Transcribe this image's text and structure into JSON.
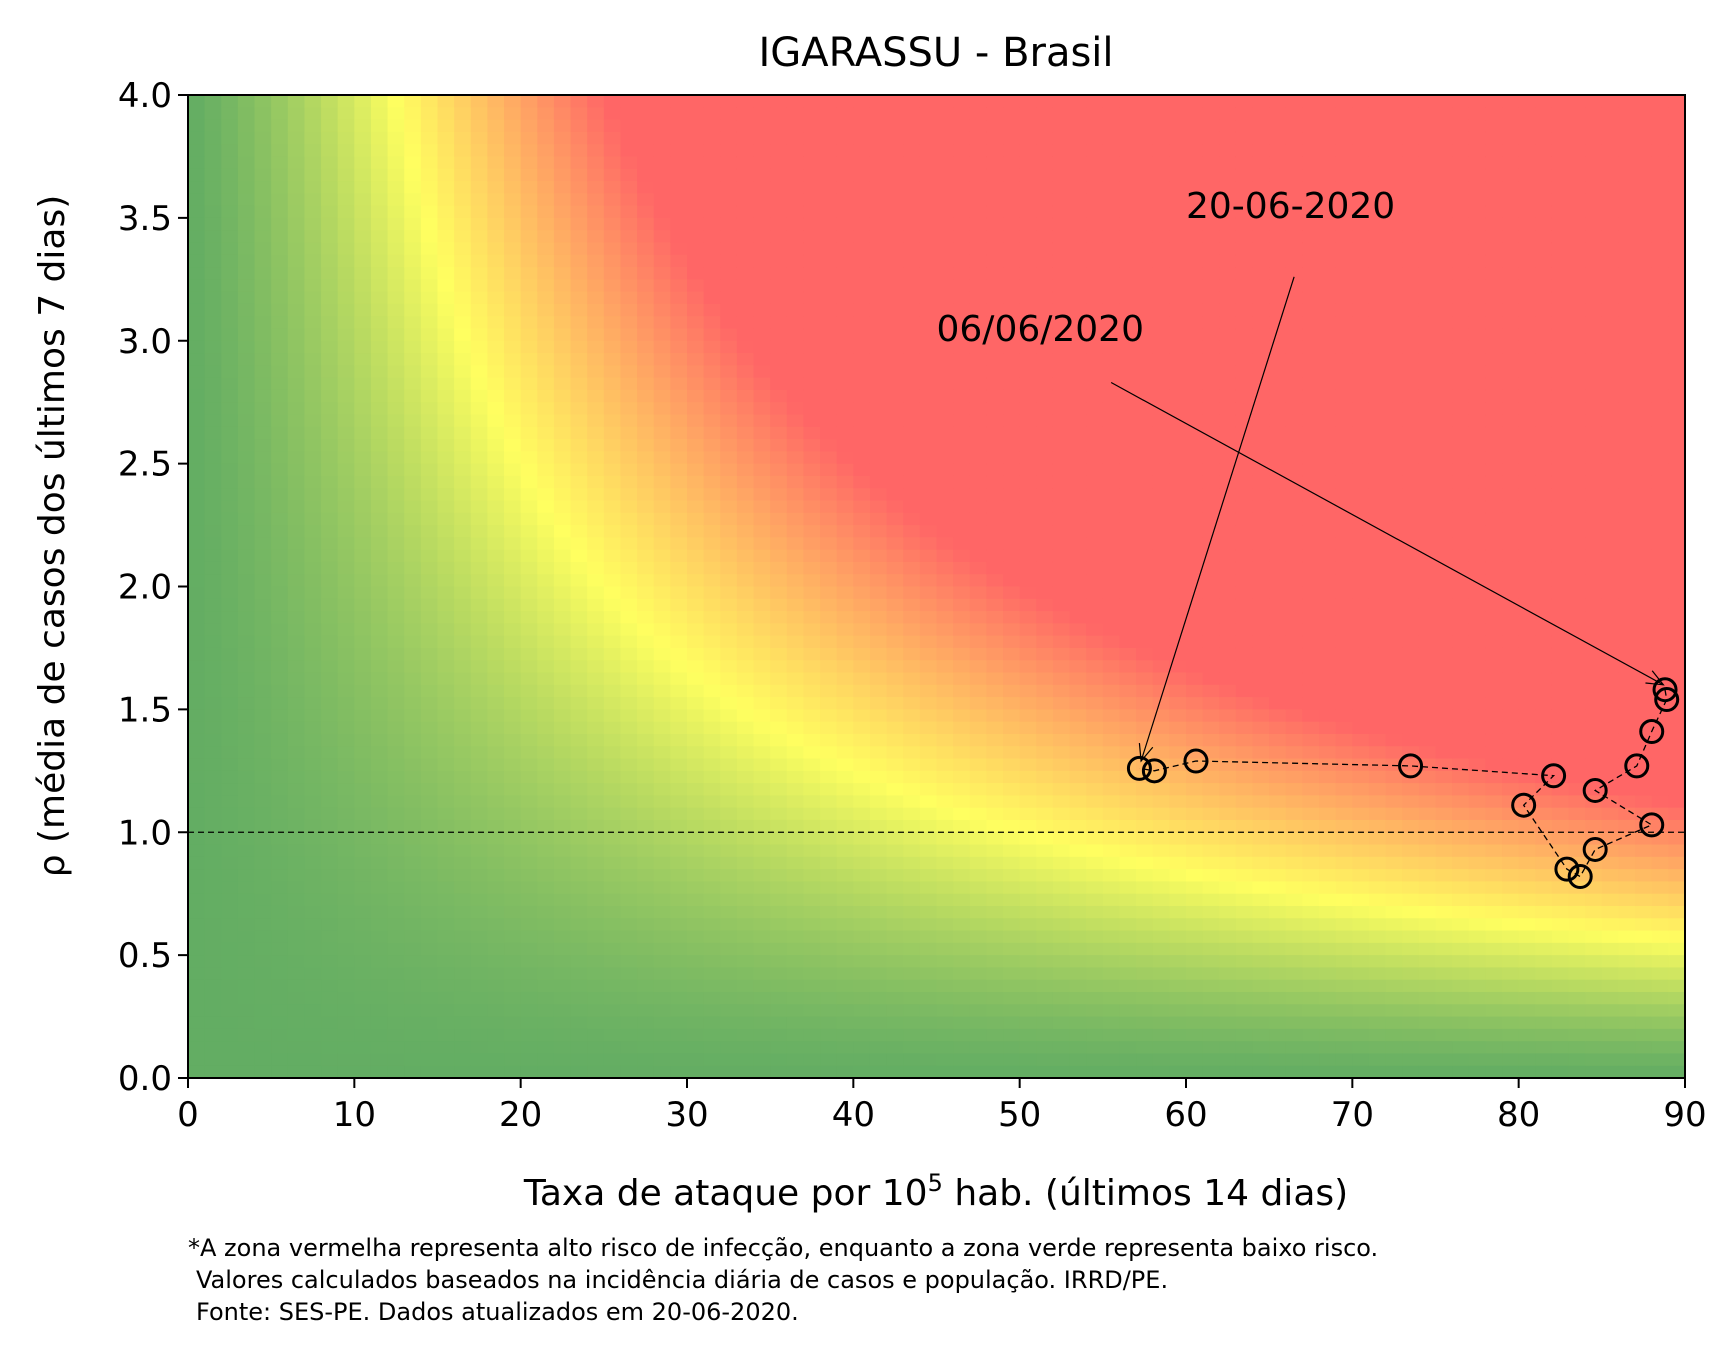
{
  "chart_data": {
    "type": "scatter",
    "title": "IGARASSU - Brasil",
    "xlabel_prefix": "Taxa de ataque por 10",
    "xlabel_sup": "5",
    "xlabel_suffix": " hab. (últimos 14 dias)",
    "ylabel": "ρ (média de casos dos últimos 7 dias)",
    "xlim": [
      0,
      90
    ],
    "ylim": [
      0,
      4
    ],
    "xticks": [
      0,
      10,
      20,
      30,
      40,
      50,
      60,
      70,
      80,
      90
    ],
    "yticks": [
      0.0,
      0.5,
      1.0,
      1.5,
      2.0,
      2.5,
      3.0,
      3.5,
      4.0
    ],
    "ytick_labels": [
      "0.0",
      "0.5",
      "1.0",
      "1.5",
      "2.0",
      "2.5",
      "3.0",
      "3.5",
      "4.0"
    ],
    "reference_line_y": 1.0,
    "background": "risk heatmap: green (low) → yellow → red (high), based on x·ρ",
    "colors": {
      "green": "#63ad63",
      "yellow": "#ffff60",
      "red": "#ff6666",
      "marker": "#000000"
    },
    "series": [
      {
        "points": [
          {
            "x": 88.8,
            "y": 1.58
          },
          {
            "x": 88.9,
            "y": 1.54
          },
          {
            "x": 88.0,
            "y": 1.41
          },
          {
            "x": 87.1,
            "y": 1.27
          },
          {
            "x": 84.6,
            "y": 1.17
          },
          {
            "x": 88.0,
            "y": 1.03
          },
          {
            "x": 84.6,
            "y": 0.93
          },
          {
            "x": 83.7,
            "y": 0.82
          },
          {
            "x": 82.9,
            "y": 0.85
          },
          {
            "x": 80.3,
            "y": 1.11
          },
          {
            "x": 82.1,
            "y": 1.23
          },
          {
            "x": 73.5,
            "y": 1.27
          },
          {
            "x": 60.6,
            "y": 1.29
          },
          {
            "x": 58.1,
            "y": 1.25
          },
          {
            "x": 57.2,
            "y": 1.26
          }
        ]
      }
    ],
    "annotations": [
      {
        "text": "06/06/2020",
        "text_x": 45.0,
        "text_y": 3.0,
        "arrow_from": [
          55.5,
          2.83
        ],
        "arrow_to": [
          88.7,
          1.6
        ]
      },
      {
        "text": "20-06-2020",
        "text_x": 60.0,
        "text_y": 3.5,
        "arrow_from": [
          66.5,
          3.26
        ],
        "arrow_to": [
          57.3,
          1.29
        ]
      }
    ]
  },
  "footnote": {
    "line1": "*A zona vermelha representa alto risco de infecção, enquanto a zona verde representa baixo risco.",
    "line2": "Valores calculados baseados na incidência diária de casos e população. IRRD/PE.",
    "line3": "Fonte: SES-PE. Dados atualizados em 20-06-2020."
  }
}
